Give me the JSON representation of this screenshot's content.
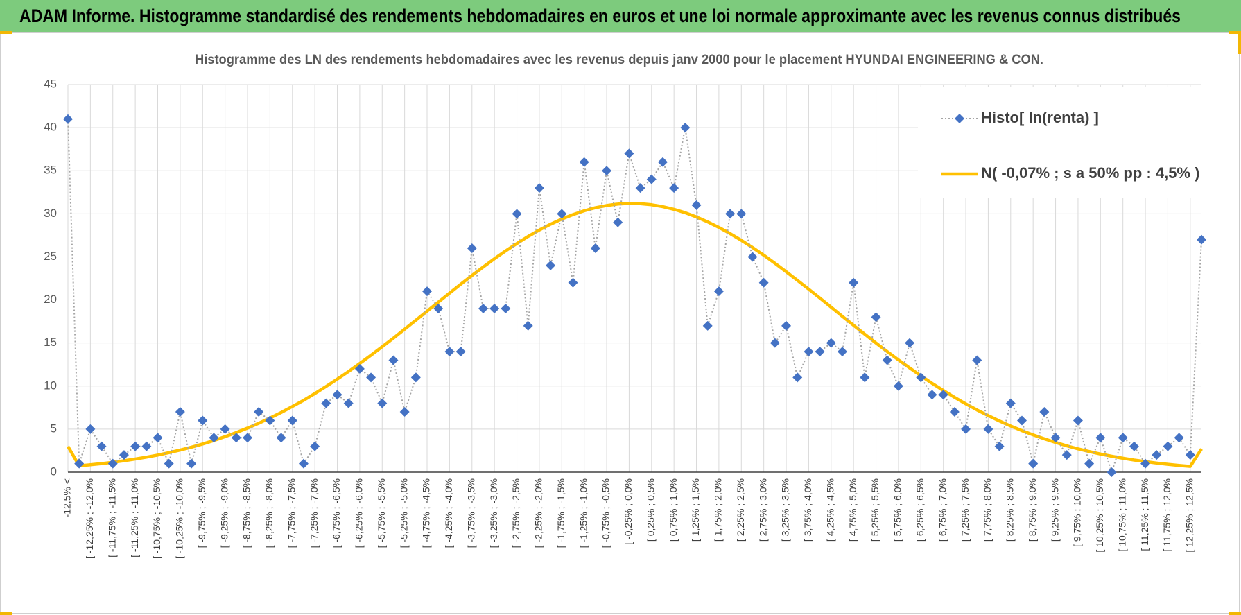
{
  "header": {
    "title": "ADAM Informe. Histogramme standardisé des rendements hebdomadaires en euros et une loi normale approximante avec les revenus connus distribués"
  },
  "chart_data": {
    "type": "line",
    "title": "Histogramme des LN des rendements hebdomadaires avec les revenus depuis janv 2000 pour le placement HYUNDAI ENGINEERING & CON.",
    "categories": [
      "-12,5% <",
      null,
      "[ -12,25% ; -12,0%",
      null,
      "[ -11,75% ; -11,5%",
      null,
      "[ -11,25% ; -11,0%",
      null,
      "[ -10,75% ; -10,5%",
      null,
      "[ -10,25% ; -10,0%",
      null,
      "[ -9,75% ; -9,5%",
      null,
      "[ -9,25% ; -9,0%",
      null,
      "[ -8,75% ; -8,5%",
      null,
      "[ -8,25% ; -8,0%",
      null,
      "[ -7,75% ; -7,5%",
      null,
      "[ -7,25% ; -7,0%",
      null,
      "[ -6,75% ; -6,5%",
      null,
      "[ -6,25% ; -6,0%",
      null,
      "[ -5,75% ; -5,5%",
      null,
      "[ -5,25% ; -5,0%",
      null,
      "[ -4,75% ; -4,5%",
      null,
      "[ -4,25% ; -4,0%",
      null,
      "[ -3,75% ; -3,5%",
      null,
      "[ -3,25% ; -3,0%",
      null,
      "[ -2,75% ; -2,5%",
      null,
      "[ -2,25% ; -2,0%",
      null,
      "[ -1,75% ; -1,5%",
      null,
      "[ -1,25% ; -1,0%",
      null,
      "[ -0,75% ; -0,5%",
      null,
      "[ -0,25% ; 0,0%",
      null,
      "[ 0,25% ; 0,5%",
      null,
      "[ 0,75% ; 1,0%",
      null,
      "[ 1,25% ; 1,5%",
      null,
      "[ 1,75% ; 2,0%",
      null,
      "[ 2,25% ; 2,5%",
      null,
      "[ 2,75% ; 3,0%",
      null,
      "[ 3,25% ; 3,5%",
      null,
      "[ 3,75% ; 4,0%",
      null,
      "[ 4,25% ; 4,5%",
      null,
      "[ 4,75% ; 5,0%",
      null,
      "[ 5,25% ; 5,5%",
      null,
      "[ 5,75% ; 6,0%",
      null,
      "[ 6,25% ; 6,5%",
      null,
      "[ 6,75% ; 7,0%",
      null,
      "[ 7,25% ; 7,5%",
      null,
      "[ 7,75% ; 8,0%",
      null,
      "[ 8,25% ; 8,5%",
      null,
      "[ 8,75% ; 9,0%",
      null,
      "[ 9,25% ; 9,5%",
      null,
      "[ 9,75% ; 10,0%",
      null,
      "[ 10,25% ; 10,5%",
      null,
      "[ 10,75% ; 11,0%",
      null,
      "[ 11,25% ; 11,5%",
      null,
      "[ 11,75% ; 12,0%",
      null,
      "[ 12,25% ; 12,5%",
      null
    ],
    "series": [
      {
        "name": "Histo[ ln(renta) ]",
        "color": "#4472c4",
        "line_color": "#a5a5a5",
        "values": [
          41,
          1,
          5,
          3,
          1,
          2,
          3,
          3,
          4,
          1,
          7,
          1,
          6,
          4,
          5,
          4,
          4,
          7,
          6,
          4,
          6,
          1,
          3,
          8,
          9,
          8,
          12,
          11,
          8,
          13,
          7,
          11,
          21,
          19,
          14,
          14,
          26,
          19,
          19,
          19,
          30,
          17,
          33,
          24,
          30,
          22,
          36,
          26,
          35,
          29,
          37,
          33,
          34,
          36,
          33,
          40,
          31,
          17,
          21,
          30,
          30,
          25,
          22,
          15,
          17,
          11,
          14,
          14,
          15,
          14,
          22,
          11,
          18,
          13,
          10,
          15,
          11,
          9,
          9,
          7,
          5,
          13,
          5,
          3,
          8,
          6,
          1,
          7,
          4,
          2,
          6,
          1,
          4,
          0,
          4,
          3,
          1,
          2,
          3,
          4,
          2,
          27
        ]
      },
      {
        "name": "N( -0,07% ; s a 50% pp : 4,5% )",
        "color": "#ffc000",
        "values": [
          3.0,
          0.74,
          0.86,
          1.0,
          1.15,
          1.33,
          1.53,
          1.75,
          1.99,
          2.27,
          2.57,
          2.91,
          3.28,
          3.68,
          4.12,
          4.6,
          5.12,
          5.68,
          6.29,
          6.93,
          7.63,
          8.35,
          9.13,
          9.95,
          10.8,
          11.69,
          12.62,
          13.58,
          14.56,
          15.57,
          16.6,
          17.64,
          18.69,
          19.74,
          20.79,
          21.82,
          22.84,
          23.82,
          24.78,
          25.69,
          26.55,
          27.37,
          28.11,
          28.79,
          29.39,
          29.91,
          30.35,
          30.7,
          30.96,
          31.13,
          31.2,
          31.17,
          31.05,
          30.83,
          30.52,
          30.12,
          29.63,
          29.06,
          28.42,
          27.7,
          26.92,
          26.08,
          25.19,
          24.25,
          23.27,
          22.27,
          21.25,
          20.21,
          19.16,
          18.1,
          17.06,
          16.02,
          15.0,
          14.01,
          13.04,
          12.1,
          11.19,
          10.31,
          9.48,
          8.69,
          7.94,
          7.23,
          6.57,
          5.94,
          5.36,
          4.82,
          4.33,
          3.87,
          3.45,
          3.06,
          2.71,
          2.4,
          2.11,
          1.85,
          1.62,
          1.41,
          1.23,
          1.06,
          0.92,
          0.79,
          0.68,
          2.7
        ]
      }
    ],
    "ylim": [
      0,
      45
    ],
    "yticks": [
      0,
      5,
      10,
      15,
      20,
      25,
      30,
      35,
      40,
      45
    ],
    "grid": true
  }
}
